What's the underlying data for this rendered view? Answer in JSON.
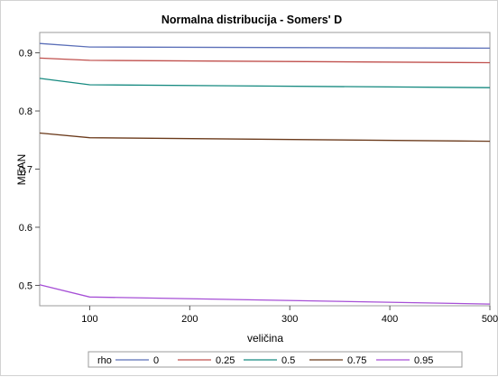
{
  "chart_data": {
    "type": "line",
    "title": "Normalna distribucija - Somers' D",
    "xlabel": "veličina",
    "ylabel": "MEAN",
    "x": [
      50,
      100,
      500
    ],
    "xlim": [
      50,
      500
    ],
    "ylim": [
      0.465,
      0.935
    ],
    "xticks": [
      100,
      200,
      300,
      400,
      500
    ],
    "yticks": [
      0.5,
      0.6,
      0.7,
      0.8,
      0.9
    ],
    "ytick_labels": [
      "0.5",
      "0.6",
      "0.7",
      "0.8",
      "0.9"
    ],
    "grid": false,
    "legend": {
      "title": "rho",
      "placement": "bottom-center"
    },
    "series": [
      {
        "name": "0",
        "color": "#5b6fb8",
        "values": [
          0.916,
          0.91,
          0.908
        ]
      },
      {
        "name": "0.25",
        "color": "#c0504d",
        "values": [
          0.891,
          0.887,
          0.883
        ]
      },
      {
        "name": "0.5",
        "color": "#168a80",
        "values": [
          0.856,
          0.845,
          0.84
        ]
      },
      {
        "name": "0.75",
        "color": "#6b3a1b",
        "values": [
          0.762,
          0.754,
          0.748
        ]
      },
      {
        "name": "0.95",
        "color": "#a64fd6",
        "values": [
          0.501,
          0.48,
          0.468
        ]
      }
    ]
  }
}
